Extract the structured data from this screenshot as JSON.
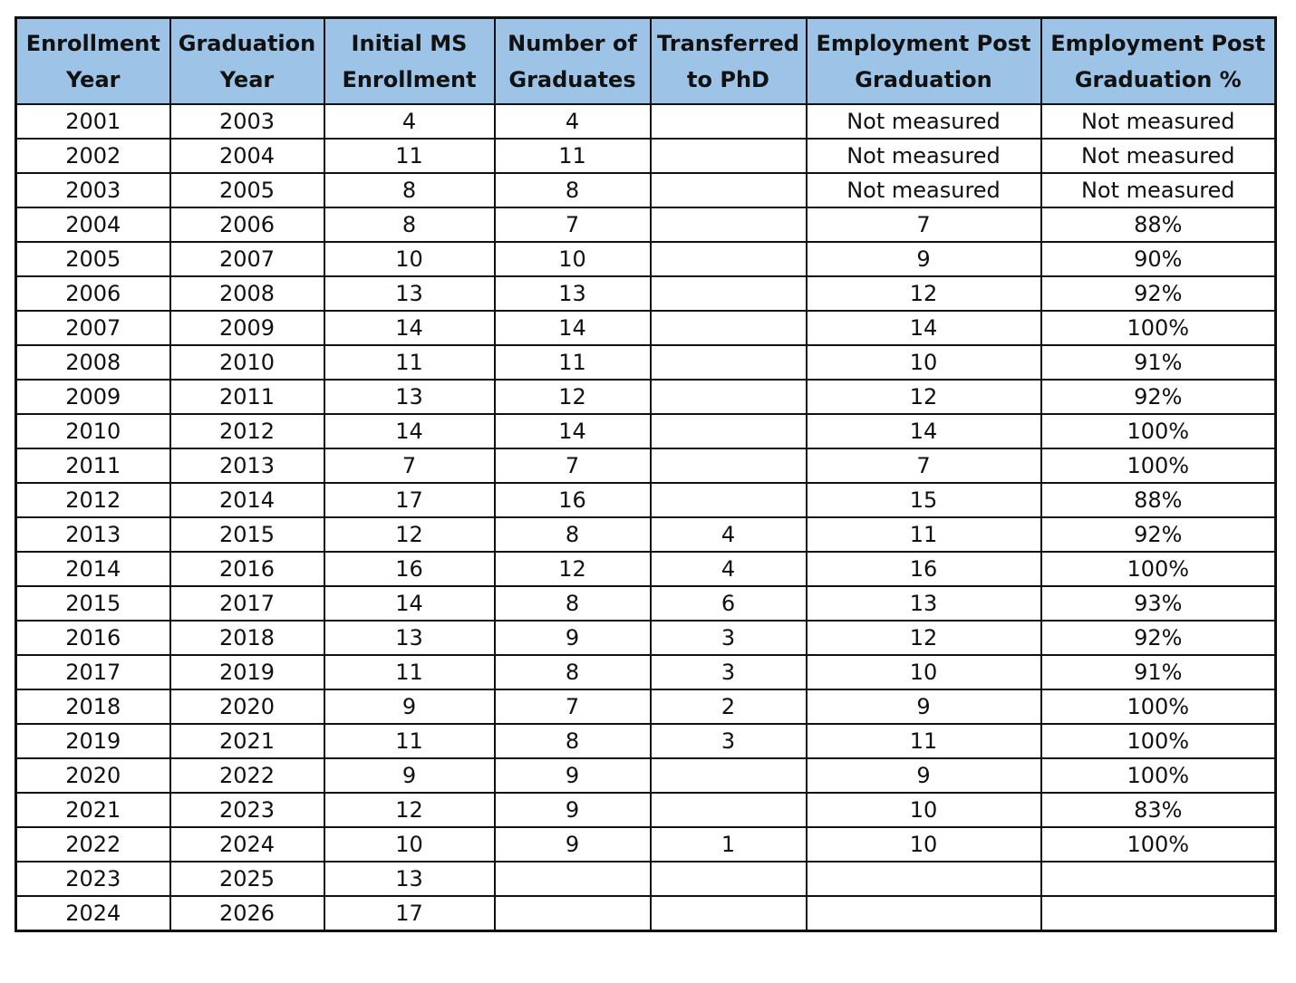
{
  "table": {
    "header_bg": "#9dc3e6",
    "headers": [
      [
        "Enrollment",
        "Year"
      ],
      [
        "Graduation",
        "Year"
      ],
      [
        "Initial MS",
        "Enrollment"
      ],
      [
        "Number of",
        "Graduates"
      ],
      [
        "Transferred",
        "to PhD"
      ],
      [
        "Employment Post",
        "Graduation"
      ],
      [
        "Employment Post",
        "Graduation %"
      ]
    ],
    "rows": [
      [
        "2001",
        "2003",
        "4",
        "4",
        "",
        "Not measured",
        "Not measured"
      ],
      [
        "2002",
        "2004",
        "11",
        "11",
        "",
        "Not measured",
        "Not measured"
      ],
      [
        "2003",
        "2005",
        "8",
        "8",
        "",
        "Not measured",
        "Not measured"
      ],
      [
        "2004",
        "2006",
        "8",
        "7",
        "",
        "7",
        "88%"
      ],
      [
        "2005",
        "2007",
        "10",
        "10",
        "",
        "9",
        "90%"
      ],
      [
        "2006",
        "2008",
        "13",
        "13",
        "",
        "12",
        "92%"
      ],
      [
        "2007",
        "2009",
        "14",
        "14",
        "",
        "14",
        "100%"
      ],
      [
        "2008",
        "2010",
        "11",
        "11",
        "",
        "10",
        "91%"
      ],
      [
        "2009",
        "2011",
        "13",
        "12",
        "",
        "12",
        "92%"
      ],
      [
        "2010",
        "2012",
        "14",
        "14",
        "",
        "14",
        "100%"
      ],
      [
        "2011",
        "2013",
        "7",
        "7",
        "",
        "7",
        "100%"
      ],
      [
        "2012",
        "2014",
        "17",
        "16",
        "",
        "15",
        "88%"
      ],
      [
        "2013",
        "2015",
        "12",
        "8",
        "4",
        "11",
        "92%"
      ],
      [
        "2014",
        "2016",
        "16",
        "12",
        "4",
        "16",
        "100%"
      ],
      [
        "2015",
        "2017",
        "14",
        "8",
        "6",
        "13",
        "93%"
      ],
      [
        "2016",
        "2018",
        "13",
        "9",
        "3",
        "12",
        "92%"
      ],
      [
        "2017",
        "2019",
        "11",
        "8",
        "3",
        "10",
        "91%"
      ],
      [
        "2018",
        "2020",
        "9",
        "7",
        "2",
        "9",
        "100%"
      ],
      [
        "2019",
        "2021",
        "11",
        "8",
        "3",
        "11",
        "100%"
      ],
      [
        "2020",
        "2022",
        "9",
        "9",
        "",
        "9",
        "100%"
      ],
      [
        "2021",
        "2023",
        "12",
        "9",
        "",
        "10",
        "83%"
      ],
      [
        "2022",
        "2024",
        "10",
        "9",
        "1",
        "10",
        "100%"
      ],
      [
        "2023",
        "2025",
        "13",
        "",
        "",
        "",
        ""
      ],
      [
        "2024",
        "2026",
        "17",
        "",
        "",
        "",
        ""
      ]
    ]
  }
}
